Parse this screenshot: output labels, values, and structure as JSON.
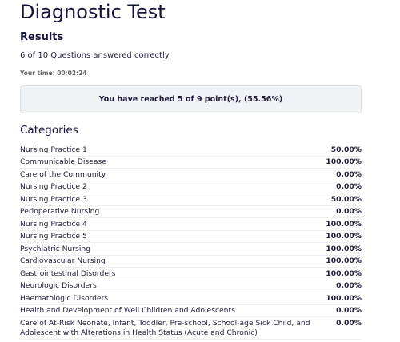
{
  "header": {
    "title": "Diagnostic Test"
  },
  "results": {
    "heading": "Results",
    "summary": "6 of 10 Questions answered correctly",
    "time": "Your time: 00:02:24",
    "points": "You have reached 5 of 9 point(s), (55.56%)"
  },
  "categories": {
    "heading": "Categories",
    "rows": [
      [
        "Nursing Practice 1",
        "50.00%"
      ],
      [
        "Communicable Disease",
        "100.00%"
      ],
      [
        "Care of the Community",
        "0.00%"
      ],
      [
        "Nursing Practice 2",
        "0.00%"
      ],
      [
        "Nursing Practice 3",
        "50.00%"
      ],
      [
        "Perioperative Nursing",
        "0.00%"
      ],
      [
        "Nursing Practice 4",
        "100.00%"
      ],
      [
        "Nursing Practice 5",
        "100.00%"
      ],
      [
        "Psychiatric Nursing",
        "100.00%"
      ],
      [
        "Cardiovascular Nursing",
        "100.00%"
      ],
      [
        "Gastrointestinal Disorders",
        "100.00%"
      ],
      [
        "Neurologic Disorders",
        "0.00%"
      ],
      [
        "Haematologic Disorders",
        "100.00%"
      ],
      [
        "Health and Development of Well Children and Adolescents",
        "0.00%"
      ],
      [
        "Care of At-Risk Neonate, Infant, Toddler, Pre-school, School-age Sick Child, and Adolescent with Alterations in Health Status (Acute and Chronic)",
        "0.00%"
      ]
    ]
  }
}
